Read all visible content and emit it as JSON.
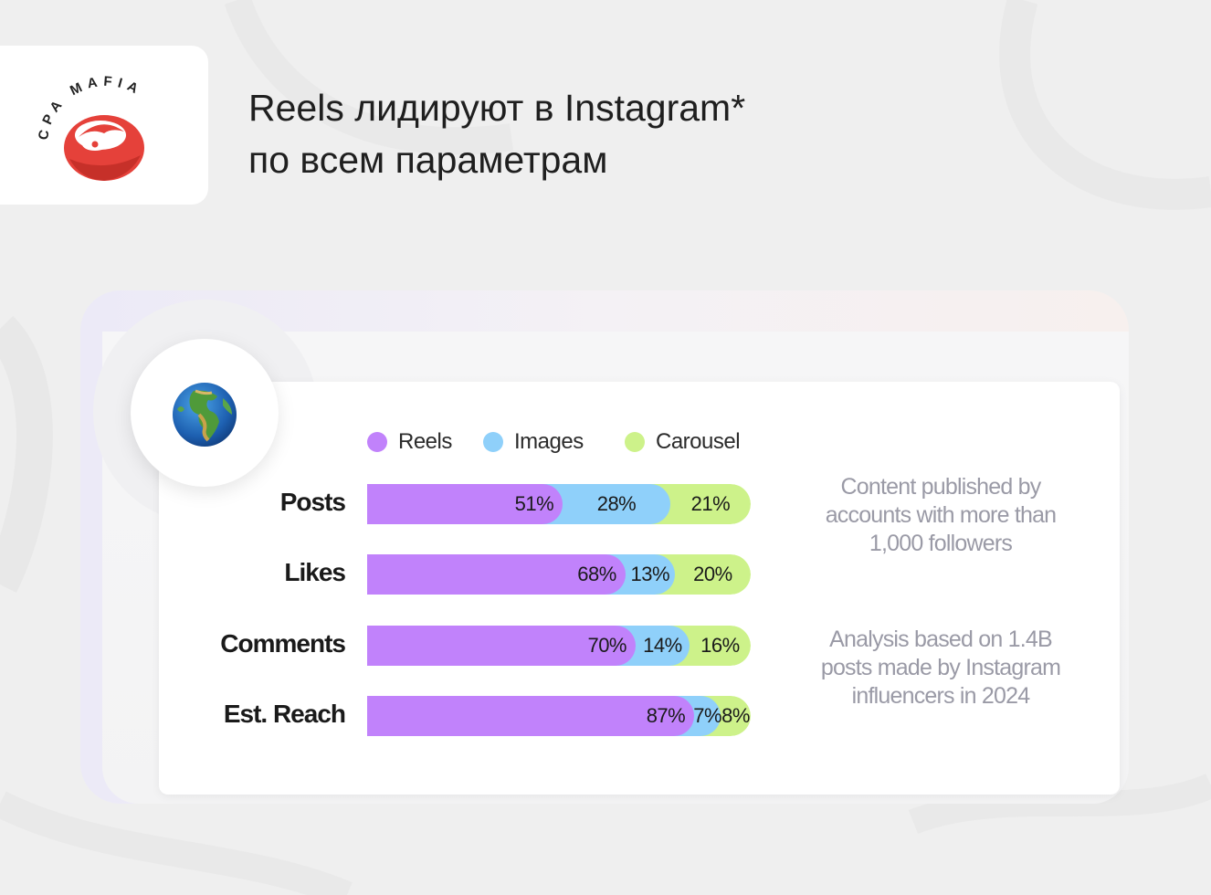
{
  "brand": {
    "logo_text": "CPA MAFIA",
    "accent_color": "#e5413a"
  },
  "headline": {
    "line1": "Reels лидируют в Instagram*",
    "line2": "по всем параметрам"
  },
  "globe_icon": "globe-earth-africa-icon",
  "chart_data": {
    "type": "bar",
    "stacked": true,
    "orientation": "horizontal",
    "categories": [
      "Posts",
      "Likes",
      "Comments",
      "Est. Reach"
    ],
    "series": [
      {
        "name": "Reels",
        "color": "#c182fb",
        "values": [
          51,
          68,
          70,
          87
        ],
        "labels": [
          "51%",
          "68%",
          "70%",
          "87%"
        ]
      },
      {
        "name": "Images",
        "color": "#8fd0fa",
        "values": [
          28,
          13,
          14,
          7
        ],
        "labels": [
          "28%",
          "13%",
          "14%",
          "7%"
        ]
      },
      {
        "name": "Carousel",
        "color": "#cdf28a",
        "values": [
          21,
          20,
          16,
          8
        ],
        "labels": [
          "21%",
          "20%",
          "16%",
          "8%"
        ]
      }
    ],
    "legend": "top",
    "grid": false
  },
  "notes": {
    "note1": "Content published by accounts with more than 1,000 followers",
    "note2": "Analysis based on 1.4B posts made by Instagram influencers in 2024"
  }
}
